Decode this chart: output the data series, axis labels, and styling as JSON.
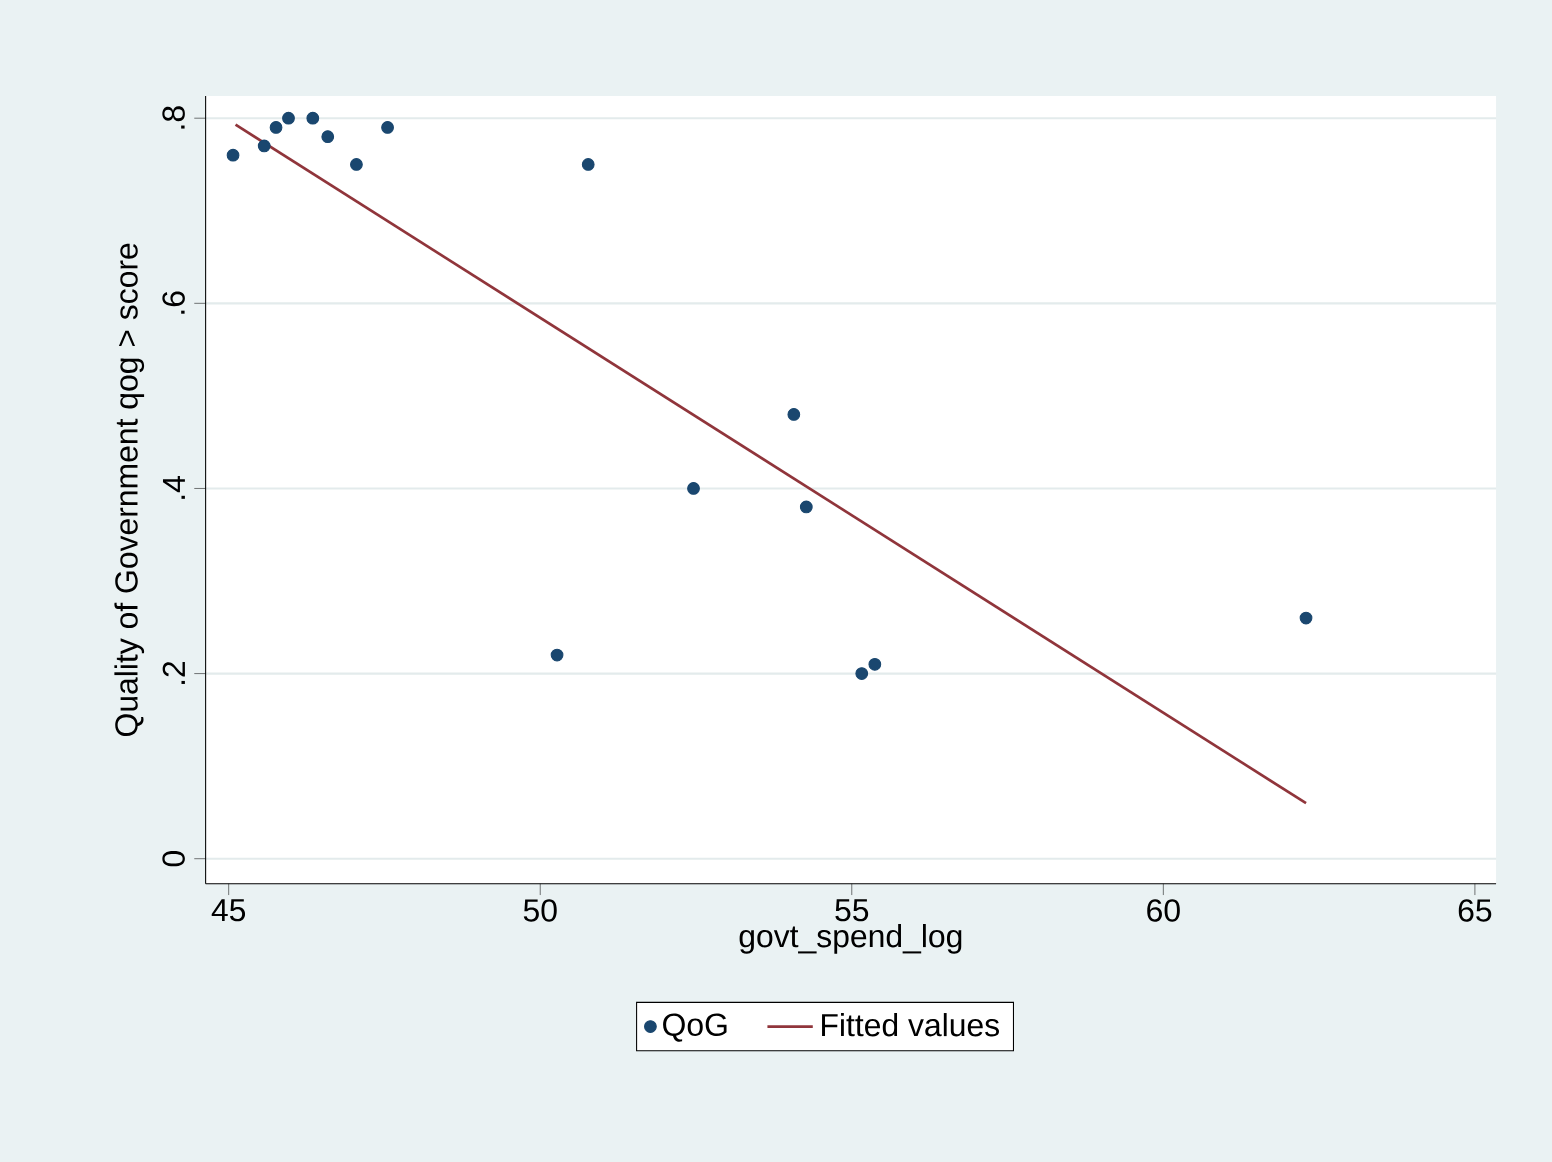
{
  "chart_data": {
    "type": "scatter",
    "xlabel": "govt_spend_log",
    "ylabel": "Quality of Government qog > score",
    "xlim": [
      44.63,
      65.34
    ],
    "ylim": [
      -0.027,
      0.824
    ],
    "xticks": [
      45,
      50,
      55,
      60,
      65
    ],
    "yticks": [
      0,
      {
        "value": 0.2,
        "label": ".2"
      },
      {
        "value": 0.4,
        "label": ".4"
      },
      {
        "value": 0.6,
        "label": ".6"
      },
      {
        "value": 0.8,
        "label": ".8"
      }
    ],
    "grid": "y",
    "legend": "bottom",
    "series": [
      {
        "name": "QoG",
        "marker": "circle",
        "color": "#1a476f",
        "x": [
          45.07,
          45.57,
          45.76,
          45.96,
          46.35,
          46.59,
          47.05,
          47.55,
          50.77,
          50.27,
          52.46,
          54.07,
          54.27,
          55.16,
          55.37,
          62.29
        ],
        "values": [
          0.76,
          0.77,
          0.79,
          0.8,
          0.8,
          0.78,
          0.75,
          0.79,
          0.75,
          0.22,
          0.4,
          0.48,
          0.38,
          0.2,
          0.21,
          0.26
        ]
      },
      {
        "name": "Fitted values",
        "type": "line",
        "marker": "none",
        "color": "#90353b",
        "x": [
          45.11,
          62.29
        ],
        "values": [
          0.793,
          0.06
        ]
      }
    ]
  }
}
